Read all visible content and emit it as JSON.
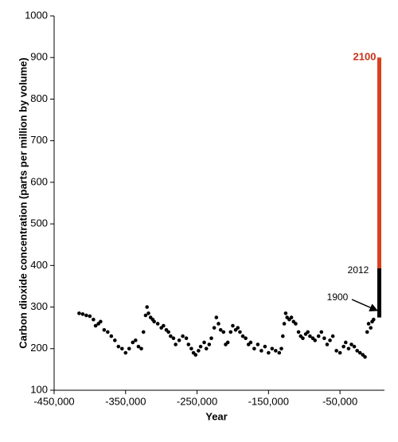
{
  "chart_data": {
    "type": "scatter",
    "xlabel": "Year",
    "ylabel": "Carbon dioxide concentration (parts per million by volume)",
    "xlim": [
      -450000,
      10000
    ],
    "ylim": [
      100,
      1000
    ],
    "xticks": [
      {
        "value": -450000,
        "label": "-450,000"
      },
      {
        "value": -350000,
        "label": "-350,000"
      },
      {
        "value": -250000,
        "label": "-250,000"
      },
      {
        "value": -150000,
        "label": "-150,000"
      },
      {
        "value": -50000,
        "label": "-50,000"
      }
    ],
    "yticks": [
      100,
      200,
      300,
      400,
      500,
      600,
      700,
      800,
      900,
      1000
    ],
    "grid": false,
    "series": [
      {
        "color": "#000000",
        "mode": "markers",
        "x": [
          -415000,
          -410000,
          -405000,
          -400000,
          -395000,
          -392000,
          -388000,
          -385000,
          -380000,
          -375000,
          -370000,
          -365000,
          -360000,
          -355000,
          -350000,
          -345000,
          -340000,
          -336000,
          -332000,
          -328000,
          -325000,
          -322000,
          -320000,
          -318000,
          -315000,
          -312000,
          -310000,
          -305000,
          -300000,
          -297000,
          -293000,
          -290000,
          -287000,
          -283000,
          -280000,
          -275000,
          -270000,
          -265000,
          -262000,
          -258000,
          -255000,
          -252000,
          -248000,
          -245000,
          -240000,
          -237000,
          -233000,
          -230000,
          -226000,
          -223000,
          -220000,
          -217000,
          -213000,
          -210000,
          -207000,
          -203000,
          -200000,
          -196000,
          -193000,
          -190000,
          -186000,
          -182000,
          -178000,
          -175000,
          -170000,
          -165000,
          -160000,
          -155000,
          -150000,
          -145000,
          -140000,
          -135000,
          -132000,
          -130000,
          -128000,
          -126000,
          -124000,
          -121000,
          -118000,
          -115000,
          -112000,
          -108000,
          -105000,
          -102000,
          -98000,
          -95000,
          -92000,
          -88000,
          -85000,
          -80000,
          -76000,
          -72000,
          -68000,
          -64000,
          -60000,
          -55000,
          -50000,
          -45000,
          -42000,
          -38000,
          -34000,
          -30000,
          -26000,
          -22000,
          -18000,
          -15000,
          -12000,
          -10000,
          -7000,
          -5000,
          -3000
        ],
        "values": [
          285,
          283,
          280,
          278,
          270,
          255,
          260,
          265,
          245,
          240,
          230,
          220,
          205,
          200,
          190,
          200,
          215,
          220,
          205,
          200,
          240,
          280,
          300,
          285,
          275,
          270,
          265,
          260,
          250,
          255,
          245,
          240,
          230,
          225,
          210,
          220,
          230,
          225,
          210,
          200,
          190,
          185,
          195,
          205,
          215,
          200,
          210,
          225,
          250,
          275,
          260,
          245,
          240,
          210,
          215,
          240,
          255,
          245,
          250,
          240,
          230,
          225,
          210,
          215,
          200,
          210,
          195,
          205,
          190,
          200,
          195,
          190,
          200,
          230,
          260,
          285,
          275,
          270,
          275,
          265,
          260,
          240,
          230,
          225,
          235,
          240,
          230,
          225,
          220,
          230,
          240,
          225,
          210,
          220,
          230,
          195,
          190,
          205,
          215,
          200,
          210,
          205,
          195,
          190,
          185,
          180,
          240,
          260,
          250,
          265,
          270
        ]
      },
      {
        "color": "#000000",
        "mode": "line",
        "x": [
          5000,
          5000
        ],
        "values": [
          275,
          393
        ]
      },
      {
        "color": "#d9411e",
        "mode": "line",
        "x": [
          5000,
          5000
        ],
        "values": [
          393,
          900
        ]
      }
    ],
    "annotations": [
      {
        "text": "2100",
        "color": "#c8321a"
      },
      {
        "text": "2012",
        "color": "#000000"
      },
      {
        "text": "1900",
        "color": "#000000"
      }
    ]
  }
}
